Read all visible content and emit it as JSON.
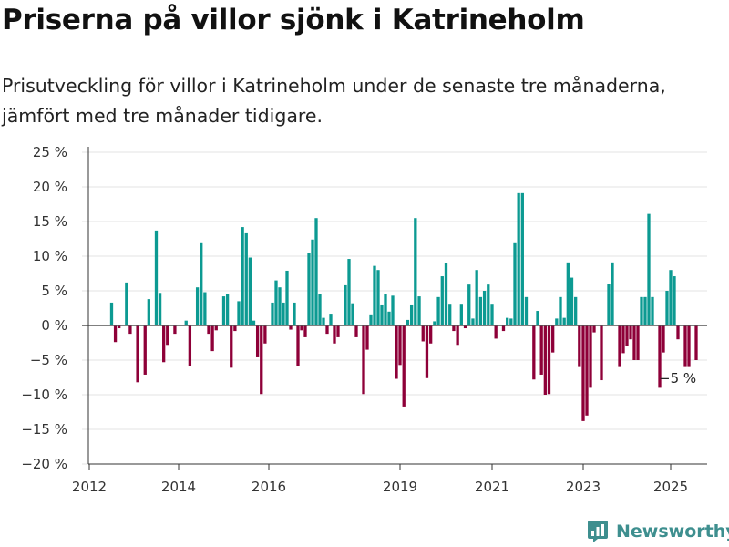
{
  "title": "Priserna på villor sjönk i Katrineholm",
  "subtitle": "Prisutveckling för villor i Katrineholm under de senaste tre månaderna, jämfört med tre månader tidigare.",
  "logo": {
    "text": "Newsworthy",
    "icon": "bar-chart-logo-icon"
  },
  "colors": {
    "positive": "#0c9a92",
    "negative": "#8e0038",
    "zero_line": "#555555",
    "grid": "#e3e3e3"
  },
  "chart_data": {
    "type": "bar",
    "xlabel": "",
    "ylabel": "",
    "ylim": [
      -20,
      25
    ],
    "y_ticks": [
      "25 %",
      "20 %",
      "15 %",
      "10 %",
      "5 %",
      "0 %",
      "−5 %",
      "−10 %",
      "−15 %",
      "−20 %"
    ],
    "y_tick_values": [
      25,
      20,
      15,
      10,
      5,
      0,
      -5,
      -10,
      -15,
      -20
    ],
    "x_ticks": [
      "2012",
      "2014",
      "2016",
      "2019",
      "2021",
      "2023",
      "2025"
    ],
    "x_tick_values": [
      "2012-01",
      "2014-01",
      "2016-01",
      "2019-01",
      "2021-01",
      "2023-01",
      "2025-01"
    ],
    "x_range": [
      "2012-01",
      "2025-11"
    ],
    "grid": "horizontal",
    "annotation": {
      "text": "−5 %",
      "x": "2025-01",
      "y": -5
    },
    "series": [
      {
        "values": [
          {
            "x": "2012-07",
            "y": 3.3
          },
          {
            "x": "2012-08",
            "y": -2.4
          },
          {
            "x": "2012-09",
            "y": -0.4
          },
          {
            "x": "2012-11",
            "y": 6.2
          },
          {
            "x": "2012-12",
            "y": -1.2
          },
          {
            "x": "2013-02",
            "y": -8.2
          },
          {
            "x": "2013-04",
            "y": -7.1
          },
          {
            "x": "2013-05",
            "y": 3.8
          },
          {
            "x": "2013-07",
            "y": 13.7
          },
          {
            "x": "2013-08",
            "y": 4.7
          },
          {
            "x": "2013-09",
            "y": -5.3
          },
          {
            "x": "2013-10",
            "y": -2.8
          },
          {
            "x": "2013-12",
            "y": -1.2
          },
          {
            "x": "2014-03",
            "y": 0.7
          },
          {
            "x": "2014-04",
            "y": -5.8
          },
          {
            "x": "2014-06",
            "y": 5.5
          },
          {
            "x": "2014-07",
            "y": 12.0
          },
          {
            "x": "2014-08",
            "y": 4.8
          },
          {
            "x": "2014-09",
            "y": -1.2
          },
          {
            "x": "2014-10",
            "y": -3.7
          },
          {
            "x": "2014-11",
            "y": -0.7
          },
          {
            "x": "2015-01",
            "y": 4.2
          },
          {
            "x": "2015-02",
            "y": 4.5
          },
          {
            "x": "2015-03",
            "y": -6.1
          },
          {
            "x": "2015-04",
            "y": -0.8
          },
          {
            "x": "2015-05",
            "y": 3.5
          },
          {
            "x": "2015-06",
            "y": 14.2
          },
          {
            "x": "2015-07",
            "y": 13.3
          },
          {
            "x": "2015-08",
            "y": 9.8
          },
          {
            "x": "2015-09",
            "y": 0.7
          },
          {
            "x": "2015-10",
            "y": -4.6
          },
          {
            "x": "2015-11",
            "y": -9.9
          },
          {
            "x": "2015-12",
            "y": -2.6
          },
          {
            "x": "2016-02",
            "y": 3.3
          },
          {
            "x": "2016-03",
            "y": 6.5
          },
          {
            "x": "2016-04",
            "y": 5.5
          },
          {
            "x": "2016-05",
            "y": 3.3
          },
          {
            "x": "2016-06",
            "y": 7.9
          },
          {
            "x": "2016-07",
            "y": -0.6
          },
          {
            "x": "2016-08",
            "y": 3.3
          },
          {
            "x": "2016-09",
            "y": -5.8
          },
          {
            "x": "2016-10",
            "y": -0.7
          },
          {
            "x": "2016-11",
            "y": -1.7
          },
          {
            "x": "2016-12",
            "y": 10.5
          },
          {
            "x": "2017-01",
            "y": 12.4
          },
          {
            "x": "2017-02",
            "y": 15.5
          },
          {
            "x": "2017-03",
            "y": 4.6
          },
          {
            "x": "2017-04",
            "y": 1.1
          },
          {
            "x": "2017-05",
            "y": -1.2
          },
          {
            "x": "2017-06",
            "y": 1.7
          },
          {
            "x": "2017-07",
            "y": -2.6
          },
          {
            "x": "2017-08",
            "y": -1.7
          },
          {
            "x": "2017-10",
            "y": 5.8
          },
          {
            "x": "2017-11",
            "y": 9.6
          },
          {
            "x": "2017-12",
            "y": 3.2
          },
          {
            "x": "2018-01",
            "y": -1.7
          },
          {
            "x": "2018-03",
            "y": -9.9
          },
          {
            "x": "2018-04",
            "y": -3.5
          },
          {
            "x": "2018-05",
            "y": 1.6
          },
          {
            "x": "2018-06",
            "y": 8.6
          },
          {
            "x": "2018-07",
            "y": 8.0
          },
          {
            "x": "2018-08",
            "y": 2.9
          },
          {
            "x": "2018-09",
            "y": 4.5
          },
          {
            "x": "2018-10",
            "y": 2.0
          },
          {
            "x": "2018-11",
            "y": 4.3
          },
          {
            "x": "2018-12",
            "y": -7.7
          },
          {
            "x": "2019-01",
            "y": -5.7
          },
          {
            "x": "2019-02",
            "y": -11.7
          },
          {
            "x": "2019-03",
            "y": 0.8
          },
          {
            "x": "2019-04",
            "y": 2.9
          },
          {
            "x": "2019-05",
            "y": 15.5
          },
          {
            "x": "2019-06",
            "y": 4.2
          },
          {
            "x": "2019-07",
            "y": -2.3
          },
          {
            "x": "2019-08",
            "y": -7.6
          },
          {
            "x": "2019-09",
            "y": -2.6
          },
          {
            "x": "2019-10",
            "y": 0.6
          },
          {
            "x": "2019-11",
            "y": 4.1
          },
          {
            "x": "2019-12",
            "y": 7.1
          },
          {
            "x": "2020-01",
            "y": 9.0
          },
          {
            "x": "2020-02",
            "y": 3.0
          },
          {
            "x": "2020-03",
            "y": -0.8
          },
          {
            "x": "2020-04",
            "y": -2.8
          },
          {
            "x": "2020-05",
            "y": 3.0
          },
          {
            "x": "2020-06",
            "y": -0.4
          },
          {
            "x": "2020-07",
            "y": 5.9
          },
          {
            "x": "2020-08",
            "y": 1.0
          },
          {
            "x": "2020-09",
            "y": 8.0
          },
          {
            "x": "2020-10",
            "y": 4.1
          },
          {
            "x": "2020-11",
            "y": 5.0
          },
          {
            "x": "2020-12",
            "y": 5.9
          },
          {
            "x": "2021-01",
            "y": 3.0
          },
          {
            "x": "2021-02",
            "y": -1.9
          },
          {
            "x": "2021-04",
            "y": -0.8
          },
          {
            "x": "2021-05",
            "y": 1.1
          },
          {
            "x": "2021-06",
            "y": 1.0
          },
          {
            "x": "2021-07",
            "y": 12.0
          },
          {
            "x": "2021-08",
            "y": 19.1
          },
          {
            "x": "2021-09",
            "y": 19.1
          },
          {
            "x": "2021-10",
            "y": 4.1
          },
          {
            "x": "2021-12",
            "y": -7.8
          },
          {
            "x": "2022-01",
            "y": 2.1
          },
          {
            "x": "2022-02",
            "y": -7.1
          },
          {
            "x": "2022-03",
            "y": -10.0
          },
          {
            "x": "2022-04",
            "y": -9.9
          },
          {
            "x": "2022-05",
            "y": -3.9
          },
          {
            "x": "2022-06",
            "y": 1.0
          },
          {
            "x": "2022-07",
            "y": 4.1
          },
          {
            "x": "2022-08",
            "y": 1.1
          },
          {
            "x": "2022-09",
            "y": 9.1
          },
          {
            "x": "2022-10",
            "y": 6.9
          },
          {
            "x": "2022-11",
            "y": 4.1
          },
          {
            "x": "2022-12",
            "y": -6.0
          },
          {
            "x": "2023-01",
            "y": -13.8
          },
          {
            "x": "2023-02",
            "y": -13.0
          },
          {
            "x": "2023-03",
            "y": -9.0
          },
          {
            "x": "2023-04",
            "y": -1.0
          },
          {
            "x": "2023-06",
            "y": -7.9
          },
          {
            "x": "2023-08",
            "y": 6.0
          },
          {
            "x": "2023-09",
            "y": 9.1
          },
          {
            "x": "2023-11",
            "y": -6.0
          },
          {
            "x": "2023-12",
            "y": -4.0
          },
          {
            "x": "2024-01",
            "y": -2.9
          },
          {
            "x": "2024-02",
            "y": -2.0
          },
          {
            "x": "2024-03",
            "y": -5.0
          },
          {
            "x": "2024-04",
            "y": -5.0
          },
          {
            "x": "2024-05",
            "y": 4.1
          },
          {
            "x": "2024-06",
            "y": 4.1
          },
          {
            "x": "2024-07",
            "y": 16.1
          },
          {
            "x": "2024-08",
            "y": 4.1
          },
          {
            "x": "2024-10",
            "y": -9.0
          },
          {
            "x": "2024-11",
            "y": -3.9
          },
          {
            "x": "2024-12",
            "y": 5.0
          },
          {
            "x": "2025-01",
            "y": 8.0
          },
          {
            "x": "2025-02",
            "y": 7.1
          },
          {
            "x": "2025-03",
            "y": -2.0
          },
          {
            "x": "2025-05",
            "y": -6.0
          },
          {
            "x": "2025-06",
            "y": -6.0
          },
          {
            "x": "2025-08",
            "y": -5.0
          }
        ]
      }
    ]
  }
}
